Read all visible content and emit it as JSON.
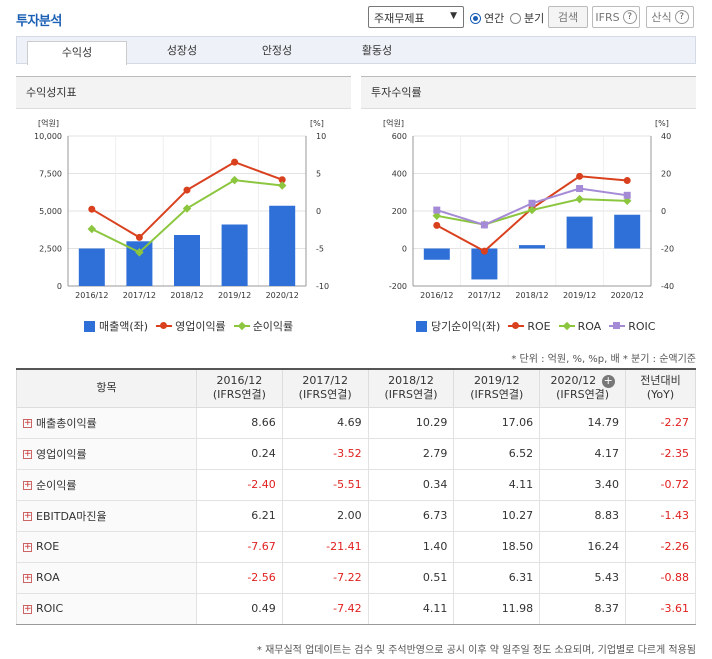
{
  "header": {
    "title": "투자분석",
    "select_value": "주재무제표",
    "radio_annual": "연간",
    "radio_quarter": "분기",
    "search_button": "검색",
    "ifrs_label": "IFRS",
    "formula_label": "산식"
  },
  "tabs": [
    {
      "label": "수익성",
      "active": true
    },
    {
      "label": "성장성",
      "active": false
    },
    {
      "label": "안정성",
      "active": false
    },
    {
      "label": "활동성",
      "active": false
    }
  ],
  "left_panel": {
    "title": "수익성지표"
  },
  "right_panel": {
    "title": "투자수익률"
  },
  "chart_data": [
    {
      "type": "bar",
      "categories": [
        "2016/12",
        "2017/12",
        "2018/12",
        "2019/12",
        "2020/12"
      ],
      "left_axis_unit": "[억원]",
      "right_axis_unit": "[%]",
      "ylim": [
        0,
        10000
      ],
      "y2lim": [
        -10,
        10
      ],
      "yticks": [
        "10,000",
        "7,500",
        "5,000",
        "2,500",
        "0"
      ],
      "y2ticks": [
        "10",
        "5",
        "0",
        "-5",
        "-10"
      ],
      "series": [
        {
          "name": "매출액(좌)",
          "kind": "bar",
          "axis": "left",
          "color": "#2e6fd8",
          "values": [
            2500,
            2980,
            3400,
            4100,
            5350
          ]
        },
        {
          "name": "영업이익률",
          "kind": "line",
          "axis": "right",
          "marker": "circle",
          "color": "#d9411e",
          "values": [
            0.24,
            -3.52,
            2.79,
            6.52,
            4.17
          ]
        },
        {
          "name": "순이익률",
          "kind": "line",
          "axis": "right",
          "marker": "diamond",
          "color": "#8cc63f",
          "values": [
            -2.4,
            -5.51,
            0.34,
            4.11,
            3.4
          ]
        }
      ]
    },
    {
      "type": "bar",
      "categories": [
        "2016/12",
        "2017/12",
        "2018/12",
        "2019/12",
        "2020/12"
      ],
      "left_axis_unit": "[억원]",
      "right_axis_unit": "[%]",
      "ylim": [
        -200,
        600
      ],
      "y2lim": [
        -40,
        40
      ],
      "yticks": [
        "600",
        "400",
        "200",
        "0",
        "-200"
      ],
      "y2ticks": [
        "40",
        "20",
        "0",
        "-20",
        "-40"
      ],
      "series": [
        {
          "name": "당기순이익(좌)",
          "kind": "bar",
          "axis": "left",
          "color": "#2e6fd8",
          "values": [
            -60,
            -165,
            18,
            170,
            180
          ]
        },
        {
          "name": "ROE",
          "kind": "line",
          "axis": "right",
          "marker": "circle",
          "color": "#d9411e",
          "values": [
            -7.67,
            -21.41,
            1.4,
            18.5,
            16.24
          ]
        },
        {
          "name": "ROA",
          "kind": "line",
          "axis": "right",
          "marker": "diamond",
          "color": "#8cc63f",
          "values": [
            -2.56,
            -7.22,
            0.51,
            6.31,
            5.43
          ]
        },
        {
          "name": "ROIC",
          "kind": "line",
          "axis": "right",
          "marker": "square",
          "color": "#a58ad6",
          "values": [
            0.49,
            -7.42,
            4.11,
            11.98,
            8.37
          ]
        }
      ]
    }
  ],
  "note": "* 단위 : 억원, %, %p, 배   * 분기 : 순액기준",
  "table": {
    "col_header": "항목",
    "columns": [
      {
        "period": "2016/12",
        "basis": "(IFRS연결)"
      },
      {
        "period": "2017/12",
        "basis": "(IFRS연결)"
      },
      {
        "period": "2018/12",
        "basis": "(IFRS연결)"
      },
      {
        "period": "2019/12",
        "basis": "(IFRS연결)"
      },
      {
        "period": "2020/12",
        "basis": "(IFRS연결)"
      }
    ],
    "yoy_header": "전년대비",
    "yoy_sub": "(YoY)",
    "rows": [
      {
        "label": "매출총이익률",
        "values": [
          "8.66",
          "4.69",
          "10.29",
          "17.06",
          "14.79",
          "-2.27"
        ]
      },
      {
        "label": "영업이익률",
        "values": [
          "0.24",
          "-3.52",
          "2.79",
          "6.52",
          "4.17",
          "-2.35"
        ]
      },
      {
        "label": "순이익률",
        "values": [
          "-2.40",
          "-5.51",
          "0.34",
          "4.11",
          "3.40",
          "-0.72"
        ]
      },
      {
        "label": "EBITDA마진율",
        "values": [
          "6.21",
          "2.00",
          "6.73",
          "10.27",
          "8.83",
          "-1.43"
        ]
      },
      {
        "label": "ROE",
        "values": [
          "-7.67",
          "-21.41",
          "1.40",
          "18.50",
          "16.24",
          "-2.26"
        ]
      },
      {
        "label": "ROA",
        "values": [
          "-2.56",
          "-7.22",
          "0.51",
          "6.31",
          "5.43",
          "-0.88"
        ]
      },
      {
        "label": "ROIC",
        "values": [
          "0.49",
          "-7.42",
          "4.11",
          "11.98",
          "8.37",
          "-3.61"
        ]
      }
    ]
  },
  "footnote": "* 재무실적 업데이트는 검수 및 주석반영으로 공시 이후 약 일주일 정도 소요되며, 기업별로 다르게 적용됨"
}
